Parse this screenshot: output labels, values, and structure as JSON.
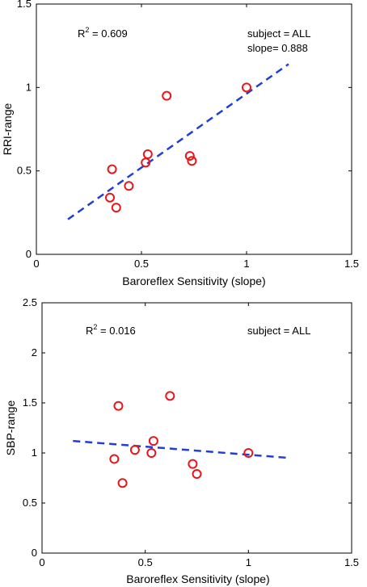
{
  "chart_data": [
    {
      "type": "scatter",
      "xlabel": "Baroreflex Sensitivity (slope)",
      "ylabel": "RRI-range",
      "xlim": [
        0,
        1.5
      ],
      "ylim": [
        0,
        1.5
      ],
      "xticks": [
        "0",
        "0.5",
        "1",
        "1.5"
      ],
      "yticks": [
        "0",
        "0.5",
        "1",
        "1.5"
      ],
      "grid": false,
      "marker_color": "#e8161a",
      "line_color": "#1f3fd6",
      "annotations": {
        "r2_prefix": "R",
        "r2_sup": "2",
        "r2_value": " = 0.609",
        "subject": "subject = ALL",
        "slope": "slope= 0.888"
      },
      "points": [
        {
          "x": 0.35,
          "y": 0.34
        },
        {
          "x": 0.36,
          "y": 0.51
        },
        {
          "x": 0.38,
          "y": 0.28
        },
        {
          "x": 0.44,
          "y": 0.41
        },
        {
          "x": 0.52,
          "y": 0.55
        },
        {
          "x": 0.53,
          "y": 0.6
        },
        {
          "x": 0.62,
          "y": 0.95
        },
        {
          "x": 0.73,
          "y": 0.59
        },
        {
          "x": 0.74,
          "y": 0.56
        },
        {
          "x": 1.0,
          "y": 1.0
        }
      ],
      "fit_line": [
        {
          "x": 0.15,
          "y": 0.21
        },
        {
          "x": 1.2,
          "y": 1.14
        }
      ]
    },
    {
      "type": "scatter",
      "xlabel": "Baroreflex Sensitivity (slope)",
      "ylabel": "SBP-range",
      "xlim": [
        0,
        1.5
      ],
      "ylim": [
        0,
        2.5
      ],
      "xticks": [
        "0",
        "0.5",
        "1",
        "1.5"
      ],
      "yticks": [
        "0",
        "0.5",
        "1",
        "1.5",
        "2",
        "2.5"
      ],
      "grid": false,
      "marker_color": "#e8161a",
      "line_color": "#1f3fd6",
      "annotations": {
        "r2_prefix": "R",
        "r2_sup": "2",
        "r2_value": " = 0.016",
        "subject": "subject = ALL"
      },
      "points": [
        {
          "x": 0.35,
          "y": 0.94
        },
        {
          "x": 0.37,
          "y": 1.47
        },
        {
          "x": 0.39,
          "y": 0.7
        },
        {
          "x": 0.45,
          "y": 1.03
        },
        {
          "x": 0.53,
          "y": 1.0
        },
        {
          "x": 0.54,
          "y": 1.12
        },
        {
          "x": 0.62,
          "y": 1.57
        },
        {
          "x": 0.73,
          "y": 0.89
        },
        {
          "x": 0.75,
          "y": 0.79
        },
        {
          "x": 1.0,
          "y": 1.0
        }
      ],
      "fit_line": [
        {
          "x": 0.15,
          "y": 1.12
        },
        {
          "x": 1.2,
          "y": 0.95
        }
      ]
    }
  ]
}
